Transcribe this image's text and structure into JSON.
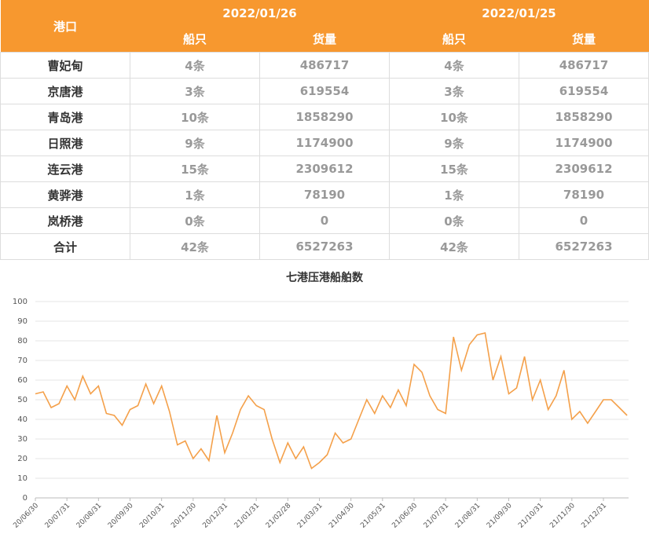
{
  "table": {
    "header": {
      "port": "港口",
      "dates": [
        "2022/01/26",
        "2022/01/25"
      ],
      "columns": [
        "船只",
        "货量",
        "船只",
        "货量"
      ]
    },
    "rows": [
      [
        "曹妃甸",
        "4条",
        "486717",
        "4条",
        "486717"
      ],
      [
        "京唐港",
        "3条",
        "619554",
        "3条",
        "619554"
      ],
      [
        "青岛港",
        "10条",
        "1858290",
        "10条",
        "1858290"
      ],
      [
        "日照港",
        "9条",
        "1174900",
        "9条",
        "1174900"
      ],
      [
        "连云港",
        "15条",
        "2309612",
        "15条",
        "2309612"
      ],
      [
        "黄骅港",
        "1条",
        "78190",
        "1条",
        "78190"
      ],
      [
        "岚桥港",
        "0条",
        "0",
        "0条",
        "0"
      ],
      [
        "合计",
        "42条",
        "6527263",
        "42条",
        "6527263"
      ]
    ]
  },
  "chart_data": {
    "type": "line",
    "title": "七港压港船舶数",
    "categories": [
      "20/06/30",
      null,
      null,
      null,
      "20/07/31",
      null,
      null,
      null,
      "20/08/31",
      null,
      null,
      null,
      "20/09/30",
      null,
      null,
      null,
      "20/10/31",
      null,
      null,
      null,
      "20/11/30",
      null,
      null,
      null,
      "20/12/31",
      null,
      null,
      null,
      "21/01/31",
      null,
      null,
      null,
      "21/02/28",
      null,
      null,
      null,
      "21/03/31",
      null,
      null,
      null,
      "21/04/30",
      null,
      null,
      null,
      "21/05/31",
      null,
      null,
      null,
      "21/06/30",
      null,
      null,
      null,
      "21/07/31",
      null,
      null,
      null,
      "21/08/31",
      null,
      null,
      null,
      "21/09/30",
      null,
      null,
      null,
      "21/10/31",
      null,
      null,
      null,
      "21/11/30",
      null,
      null,
      null,
      "21/12/31",
      null,
      null,
      null
    ],
    "series": [
      {
        "name": "七港压港船舶数",
        "color": "#f4a04a",
        "values": [
          53,
          54,
          46,
          48,
          57,
          50,
          62,
          53,
          57,
          43,
          42,
          37,
          45,
          47,
          58,
          48,
          57,
          44,
          27,
          29,
          20,
          25,
          19,
          42,
          23,
          33,
          45,
          52,
          47,
          45,
          30,
          18,
          28,
          20,
          26,
          15,
          18,
          22,
          33,
          28,
          30,
          40,
          50,
          43,
          52,
          46,
          55,
          47,
          68,
          64,
          52,
          45,
          43,
          82,
          65,
          78,
          83,
          84,
          60,
          72,
          53,
          56,
          72,
          50,
          60,
          45,
          52,
          65,
          40,
          44,
          38,
          44,
          50,
          50,
          46,
          42
        ]
      }
    ],
    "ylim": [
      0,
      100
    ],
    "yticks": [
      0,
      10,
      20,
      30,
      40,
      50,
      60,
      70,
      80,
      90,
      100
    ],
    "grid": true
  }
}
